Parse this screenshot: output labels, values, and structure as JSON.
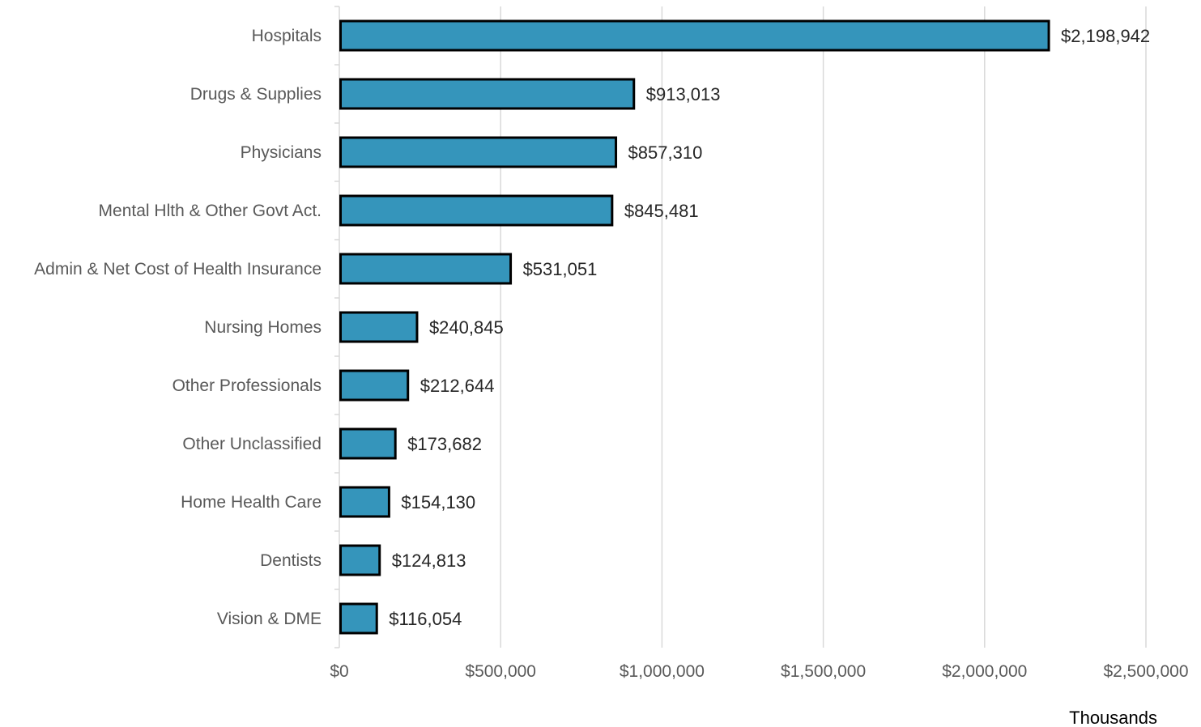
{
  "chart_data": {
    "type": "bar",
    "orientation": "horizontal",
    "categories": [
      "Hospitals",
      "Drugs & Supplies",
      "Physicians",
      "Mental Hlth & Other Govt Act.",
      "Admin & Net Cost of Health Insurance",
      "Nursing Homes",
      "Other Professionals ",
      "Other Unclassified",
      "Home Health Care",
      "Dentists",
      "Vision & DME"
    ],
    "values": [
      2198942,
      913013,
      857310,
      845481,
      531051,
      240845,
      212644,
      173682,
      154130,
      124813,
      116054
    ],
    "data_labels": [
      "$2,198,942",
      "$913,013",
      "$857,310",
      "$845,481",
      "$531,051",
      "$240,845",
      "$212,644",
      "$173,682",
      "$154,130",
      "$124,813",
      "$116,054"
    ],
    "xlim": [
      0,
      2500000
    ],
    "x_ticks": [
      0,
      500000,
      1000000,
      1500000,
      2000000,
      2500000
    ],
    "x_tick_labels": [
      "$0",
      "$500,000",
      "$1,000,000",
      "$1,500,000",
      "$2,000,000",
      "$2,500,000"
    ],
    "xlabel": "Thousands",
    "ylabel": "",
    "title": "",
    "grid": "vertical",
    "legend": "none",
    "bar_color": "#3595bb",
    "bar_edge_color": "#000000"
  }
}
